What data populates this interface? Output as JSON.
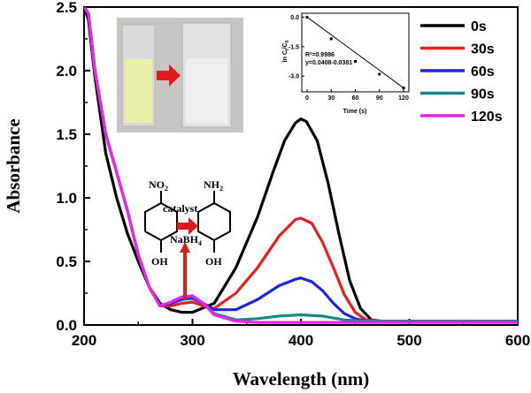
{
  "chart_data": {
    "type": "line",
    "xlabel": "Wavelength (nm)",
    "ylabel": "Absorbance",
    "xlim": [
      200,
      600
    ],
    "ylim": [
      0.0,
      2.5
    ],
    "xticks": [
      200,
      300,
      400,
      500,
      600
    ],
    "yticks": [
      0.0,
      0.5,
      1.0,
      1.5,
      2.0,
      2.5
    ],
    "xtick_labels": [
      "200",
      "300",
      "400",
      "500",
      "600"
    ],
    "ytick_labels": [
      "0.0",
      "0.5",
      "1.0",
      "1.5",
      "2.0",
      "2.5"
    ],
    "legend_position": "top-right",
    "series": [
      {
        "name": "0s",
        "color": "#000000",
        "points": [
          [
            200,
            2.5
          ],
          [
            204,
            2.4
          ],
          [
            210,
            1.95
          ],
          [
            220,
            1.35
          ],
          [
            230,
            1.0
          ],
          [
            240,
            0.72
          ],
          [
            250,
            0.5
          ],
          [
            260,
            0.3
          ],
          [
            270,
            0.17
          ],
          [
            280,
            0.12
          ],
          [
            290,
            0.1
          ],
          [
            300,
            0.1
          ],
          [
            320,
            0.17
          ],
          [
            340,
            0.45
          ],
          [
            360,
            0.85
          ],
          [
            375,
            1.22
          ],
          [
            385,
            1.45
          ],
          [
            395,
            1.59
          ],
          [
            400,
            1.62
          ],
          [
            405,
            1.6
          ],
          [
            415,
            1.45
          ],
          [
            425,
            1.12
          ],
          [
            435,
            0.72
          ],
          [
            445,
            0.35
          ],
          [
            455,
            0.13
          ],
          [
            465,
            0.04
          ],
          [
            475,
            0.03
          ],
          [
            500,
            0.03
          ],
          [
            600,
            0.03
          ]
        ]
      },
      {
        "name": "30s",
        "color": "#e8201c",
        "points": [
          [
            200,
            2.5
          ],
          [
            204,
            2.45
          ],
          [
            210,
            2.0
          ],
          [
            220,
            1.5
          ],
          [
            230,
            1.2
          ],
          [
            240,
            0.9
          ],
          [
            250,
            0.55
          ],
          [
            260,
            0.3
          ],
          [
            270,
            0.15
          ],
          [
            280,
            0.15
          ],
          [
            290,
            0.17
          ],
          [
            300,
            0.18
          ],
          [
            310,
            0.15
          ],
          [
            320,
            0.13
          ],
          [
            340,
            0.25
          ],
          [
            360,
            0.45
          ],
          [
            380,
            0.7
          ],
          [
            395,
            0.83
          ],
          [
            400,
            0.84
          ],
          [
            410,
            0.8
          ],
          [
            420,
            0.65
          ],
          [
            430,
            0.45
          ],
          [
            440,
            0.24
          ],
          [
            450,
            0.1
          ],
          [
            460,
            0.04
          ],
          [
            475,
            0.03
          ],
          [
            600,
            0.03
          ]
        ]
      },
      {
        "name": "60s",
        "color": "#1f27d8",
        "points": [
          [
            200,
            2.5
          ],
          [
            204,
            2.45
          ],
          [
            210,
            2.0
          ],
          [
            220,
            1.5
          ],
          [
            230,
            1.2
          ],
          [
            240,
            0.9
          ],
          [
            250,
            0.55
          ],
          [
            260,
            0.3
          ],
          [
            270,
            0.15
          ],
          [
            280,
            0.17
          ],
          [
            290,
            0.2
          ],
          [
            300,
            0.21
          ],
          [
            310,
            0.17
          ],
          [
            320,
            0.12
          ],
          [
            340,
            0.12
          ],
          [
            360,
            0.2
          ],
          [
            380,
            0.31
          ],
          [
            395,
            0.36
          ],
          [
            400,
            0.37
          ],
          [
            410,
            0.34
          ],
          [
            420,
            0.27
          ],
          [
            430,
            0.17
          ],
          [
            440,
            0.09
          ],
          [
            450,
            0.05
          ],
          [
            460,
            0.03
          ],
          [
            600,
            0.03
          ]
        ]
      },
      {
        "name": "90s",
        "color": "#1a8a85",
        "points": [
          [
            200,
            2.5
          ],
          [
            204,
            2.45
          ],
          [
            210,
            2.0
          ],
          [
            220,
            1.5
          ],
          [
            230,
            1.2
          ],
          [
            240,
            0.9
          ],
          [
            250,
            0.55
          ],
          [
            260,
            0.3
          ],
          [
            270,
            0.15
          ],
          [
            280,
            0.18
          ],
          [
            290,
            0.22
          ],
          [
            300,
            0.23
          ],
          [
            310,
            0.17
          ],
          [
            320,
            0.09
          ],
          [
            340,
            0.04
          ],
          [
            360,
            0.05
          ],
          [
            380,
            0.07
          ],
          [
            400,
            0.08
          ],
          [
            420,
            0.07
          ],
          [
            440,
            0.04
          ],
          [
            460,
            0.03
          ],
          [
            600,
            0.03
          ]
        ]
      },
      {
        "name": "120s",
        "color": "#ee22ee",
        "points": [
          [
            200,
            2.5
          ],
          [
            204,
            2.45
          ],
          [
            210,
            2.0
          ],
          [
            220,
            1.5
          ],
          [
            230,
            1.2
          ],
          [
            240,
            0.9
          ],
          [
            250,
            0.55
          ],
          [
            260,
            0.3
          ],
          [
            270,
            0.15
          ],
          [
            280,
            0.18
          ],
          [
            290,
            0.22
          ],
          [
            300,
            0.23
          ],
          [
            310,
            0.17
          ],
          [
            320,
            0.08
          ],
          [
            340,
            0.03
          ],
          [
            360,
            0.02
          ],
          [
            400,
            0.02
          ],
          [
            600,
            0.02
          ]
        ]
      }
    ],
    "inset": {
      "type": "scatter",
      "ylabel": "ln C",
      "ylabel_sub": "t",
      "ylabel_mid": "/C",
      "ylabel_sub2": "0",
      "xlabel": "Time (s)",
      "xlim": [
        0,
        120
      ],
      "ylim": [
        -3.8,
        0.2
      ],
      "xtick_labels": [
        "0",
        "30",
        "60",
        "90",
        "120"
      ],
      "ytick_labels": [
        "0.0",
        "-1.5",
        "-3.0"
      ],
      "xticks": [
        0,
        30,
        60,
        90,
        120
      ],
      "yticks": [
        0.0,
        -1.5,
        -3.0
      ],
      "annotation_r2": "R²=0.9986",
      "annotation_eq": "y=0.0408-0.0381",
      "points": [
        [
          0,
          0.0
        ],
        [
          30,
          -1.1
        ],
        [
          60,
          -2.25
        ],
        [
          90,
          -2.9
        ],
        [
          120,
          -3.6
        ]
      ]
    },
    "annotations": {
      "catalyst": "catalyst",
      "reducer_main": "NaBH",
      "reducer_sub": "4",
      "no2_main": "NO",
      "no2_sub": "2",
      "nh2_main": "NH",
      "nh2_sub": "2",
      "oh_left": "OH",
      "oh_right": "OH"
    },
    "photo": {
      "before_color": "#e9f1a8",
      "after_color": "#f0eeee"
    }
  }
}
